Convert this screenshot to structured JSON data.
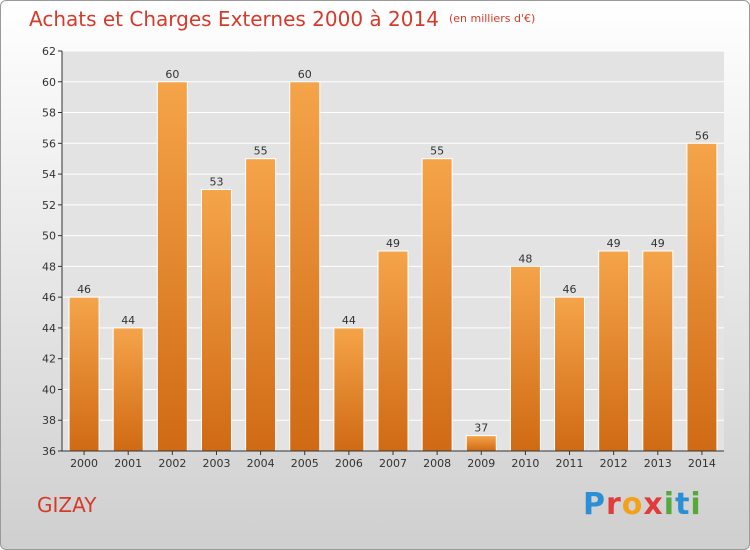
{
  "header": {
    "title": "Achats et Charges Externes 2000 à 2014",
    "subtitle": "(en milliers d'€)"
  },
  "footer": {
    "commune": "GIZAY",
    "logo_letters": [
      "P",
      "r",
      "o",
      "x",
      "i",
      "t",
      "i"
    ],
    "logo_colors": [
      "#2b8fd6",
      "#e23b3b",
      "#f2a21a",
      "#e23b3b",
      "#55a83a",
      "#2b8fd6",
      "#55a83a"
    ]
  },
  "colors": {
    "bar": "#f0902a",
    "bar_dark": "#d06a14",
    "title": "#d63a2a",
    "grid": "#ffffff"
  },
  "chart_data": {
    "type": "bar",
    "title": "Achats et Charges Externes 2000 à 2014",
    "categories": [
      "2000",
      "2001",
      "2002",
      "2003",
      "2004",
      "2005",
      "2006",
      "2007",
      "2008",
      "2009",
      "2010",
      "2011",
      "2012",
      "2013",
      "2014"
    ],
    "values": [
      46,
      44,
      60,
      53,
      55,
      60,
      44,
      49,
      55,
      37,
      48,
      46,
      49,
      49,
      56
    ],
    "value_labels": [
      "46",
      "44",
      "60",
      "53",
      "55",
      "60",
      "44",
      "49",
      "55",
      "37",
      "48",
      "46",
      "49",
      "49",
      "56"
    ],
    "ylim": [
      36,
      62
    ],
    "yticks": [
      "36",
      "38",
      "40",
      "42",
      "44",
      "46",
      "48",
      "50",
      "52",
      "54",
      "56",
      "58",
      "60",
      "62"
    ],
    "grid": true,
    "xlabel": "",
    "ylabel": ""
  }
}
